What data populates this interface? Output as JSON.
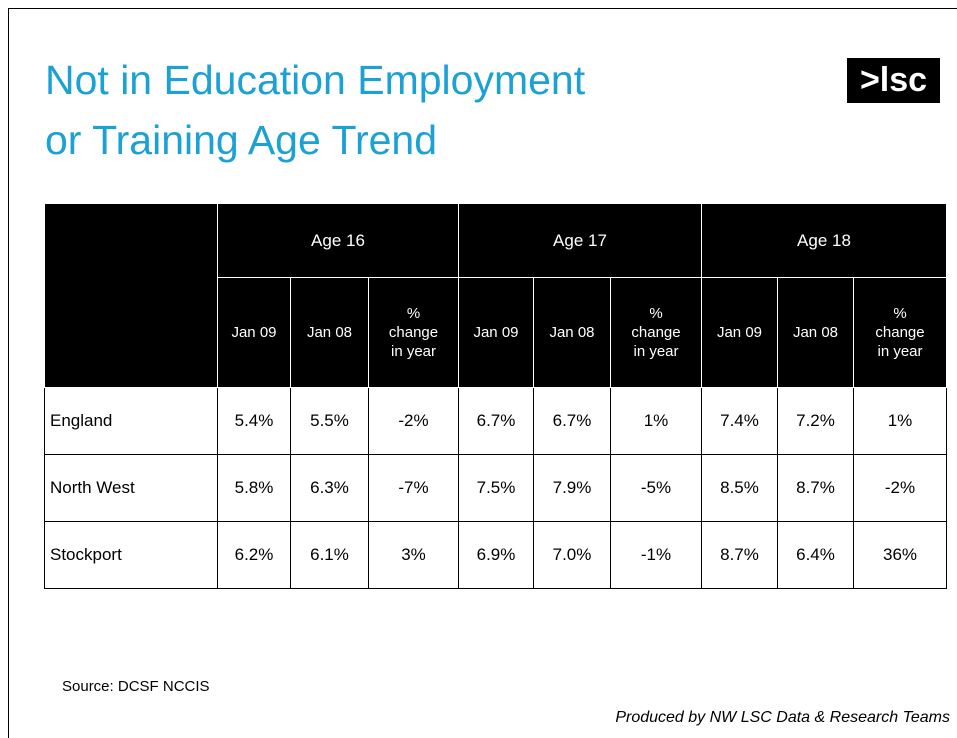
{
  "title": [
    "Not in Education Employment",
    "or Training Age Trend"
  ],
  "logo": ">lsc",
  "table": {
    "groups": [
      "Age 16",
      "Age 17",
      "Age 18"
    ],
    "subheaders": [
      [
        "Jan 09"
      ],
      [
        "Jan 08"
      ],
      [
        "%",
        "change",
        "in year"
      ],
      [
        "Jan 09"
      ],
      [
        "Jan 08"
      ],
      [
        "%",
        "change",
        "in year"
      ],
      [
        "Jan 09"
      ],
      [
        "Jan 08"
      ],
      [
        "%",
        "change",
        "in year"
      ]
    ],
    "rows": [
      {
        "label": "England",
        "values": [
          "5.4%",
          "5.5%",
          "-2%",
          "6.7%",
          "6.7%",
          "1%",
          "7.4%",
          "7.2%",
          "1%"
        ]
      },
      {
        "label": "North West",
        "values": [
          "5.8%",
          "6.3%",
          "-7%",
          "7.5%",
          "7.9%",
          "-5%",
          "8.5%",
          "8.7%",
          "-2%"
        ]
      },
      {
        "label": "Stockport",
        "values": [
          "6.2%",
          "6.1%",
          "3%",
          "6.9%",
          "7.0%",
          "-1%",
          "8.7%",
          "6.4%",
          "36%"
        ]
      }
    ]
  },
  "source": "Source: DCSF NCCIS",
  "footer": "Produced by NW LSC Data & Research Teams"
}
